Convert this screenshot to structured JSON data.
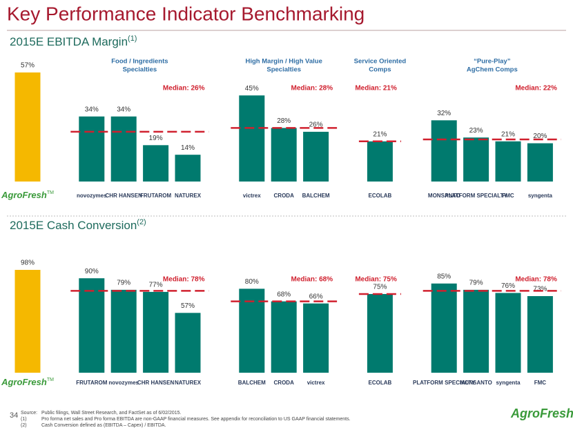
{
  "title": "Key Performance Indicator Benchmarking",
  "logo_mark": "TM",
  "page_number": "34",
  "footer_logo": "AgroFresh",
  "footnotes": [
    {
      "marker": "Source:",
      "text": "Public filings, Wall Street Research, and FactSet as of 6/02/2015."
    },
    {
      "marker": "(1)",
      "text": "Pro forma net sales and Pro forma EBITDA are non-GAAP financial measures. See appendix for reconciliation to US GAAP financial statements."
    },
    {
      "marker": "(2)",
      "text": "Cash Conversion defined as (EBITDA – Capex) / EBITDA."
    }
  ],
  "chart_data": [
    {
      "type": "bar",
      "title": "2015E EBITDA Margin",
      "title_note": "(1)",
      "groups": [
        {
          "color": "#f5b800",
          "categories": [
            "AgroFresh"
          ],
          "values": [
            57
          ],
          "value_labels": [
            "57%"
          ]
        },
        {
          "label_lines": [
            "Food / Ingredients",
            "Specialties"
          ],
          "median": 26,
          "median_label": "Median: 26%",
          "color": "#007a6e",
          "categories": [
            "novozymes",
            "CHR HANSEN",
            "FRUTAROM",
            "NATUREX"
          ],
          "values": [
            34,
            34,
            19,
            14
          ],
          "value_labels": [
            "34%",
            "34%",
            "19%",
            "14%"
          ]
        },
        {
          "label_lines": [
            "High Margin / High Value",
            "Specialties"
          ],
          "median": 28,
          "median_label": "Median: 28%",
          "color": "#007a6e",
          "categories": [
            "victrex",
            "CRODA",
            "BALCHEM"
          ],
          "values": [
            45,
            28,
            26
          ],
          "value_labels": [
            "45%",
            "28%",
            "26%"
          ]
        },
        {
          "label_lines": [
            "Service Oriented",
            "Comps"
          ],
          "median": 21,
          "median_label": "Median: 21%",
          "color": "#007a6e",
          "categories": [
            "ECOLAB"
          ],
          "values": [
            21
          ],
          "value_labels": [
            "21%"
          ]
        },
        {
          "label_lines": [
            "“Pure-Play”",
            "AgChem Comps"
          ],
          "median": 22,
          "median_label": "Median: 22%",
          "color": "#007a6e",
          "categories": [
            "MONSANTO",
            "PLATFORM SPECIALTY",
            "FMC",
            "syngenta"
          ],
          "values": [
            32,
            23,
            21,
            20
          ],
          "value_labels": [
            "32%",
            "23%",
            "21%",
            "20%"
          ]
        }
      ]
    },
    {
      "type": "bar",
      "title": "2015E Cash Conversion",
      "title_note": "(2)",
      "groups": [
        {
          "color": "#f5b800",
          "categories": [
            "AgroFresh"
          ],
          "values": [
            98
          ],
          "value_labels": [
            "98%"
          ]
        },
        {
          "median": 78,
          "median_label": "Median: 78%",
          "color": "#007a6e",
          "categories": [
            "FRUTAROM",
            "novozymes",
            "CHR HANSEN",
            "NATUREX"
          ],
          "values": [
            90,
            79,
            77,
            57
          ],
          "value_labels": [
            "90%",
            "79%",
            "77%",
            "57%"
          ]
        },
        {
          "median": 68,
          "median_label": "Median: 68%",
          "color": "#007a6e",
          "categories": [
            "BALCHEM",
            "CRODA",
            "victrex"
          ],
          "values": [
            80,
            68,
            66
          ],
          "value_labels": [
            "80%",
            "68%",
            "66%"
          ]
        },
        {
          "median": 75,
          "median_label": "Median: 75%",
          "color": "#007a6e",
          "categories": [
            "ECOLAB"
          ],
          "values": [
            75
          ],
          "value_labels": [
            "75%"
          ]
        },
        {
          "median": 78,
          "median_label": "Median: 78%",
          "color": "#007a6e",
          "categories": [
            "PLATFORM SPECIALTY",
            "MONSANTO",
            "syngenta",
            "FMC"
          ],
          "values": [
            85,
            79,
            76,
            73
          ],
          "value_labels": [
            "85%",
            "79%",
            "76%",
            "73%"
          ]
        }
      ]
    }
  ]
}
